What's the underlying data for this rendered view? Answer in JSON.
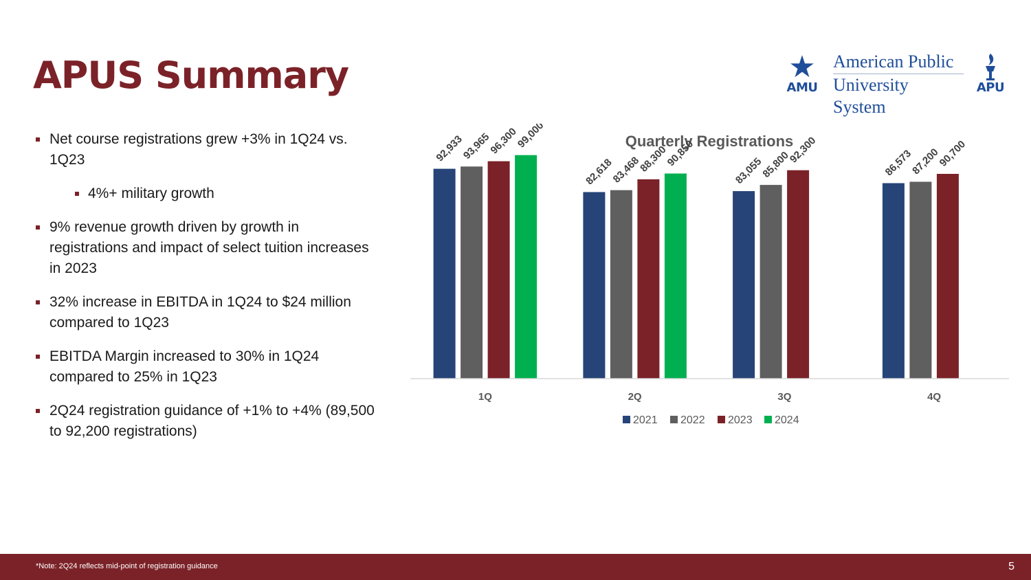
{
  "slide": {
    "title": "APUS Summary",
    "page_number": "5",
    "footnote": "*Note: 2Q24 reflects mid-point of registration guidance"
  },
  "logo": {
    "left_abbr": "AMU",
    "name_line1": "American Public",
    "name_line2": "University System",
    "right_abbr": "APU"
  },
  "bullets": [
    {
      "text": "Net course registrations grew +3% in 1Q24 vs. 1Q23"
    },
    {
      "text": "4%+ military growth",
      "level": 2
    },
    {
      "text": "9% revenue growth driven by growth in registrations and impact of select tuition increases in 2023"
    },
    {
      "text": "32% increase in EBITDA in 1Q24 to $24 million compared to 1Q23"
    },
    {
      "text": "EBITDA Margin increased to 30% in 1Q24 compared to 25% in 1Q23"
    },
    {
      "text": "2Q24 registration guidance of +1% to +4% (89,500 to 92,200 registrations)"
    }
  ],
  "chart_data": {
    "type": "bar",
    "title": "Quarterly Registrations",
    "xlabel": "",
    "ylabel": "",
    "categories": [
      "1Q",
      "2Q",
      "3Q",
      "4Q"
    ],
    "series": [
      {
        "name": "2021",
        "color": "#264478",
        "values": [
          92933,
          82618,
          83055,
          86573
        ],
        "labels": [
          "92,933",
          "82,618",
          "83,055",
          "86,573"
        ]
      },
      {
        "name": "2022",
        "color": "#5f5f5f",
        "values": [
          93965,
          83468,
          85800,
          87200
        ],
        "labels": [
          "93,965",
          "83,468",
          "85,800",
          "87,200"
        ]
      },
      {
        "name": "2023",
        "color": "#7b2228",
        "values": [
          96300,
          88300,
          92300,
          90700
        ],
        "labels": [
          "96,300",
          "88,300",
          "92,300",
          "90,700"
        ]
      },
      {
        "name": "2024",
        "color": "#00b050",
        "values": [
          99000,
          90850,
          null,
          null
        ],
        "labels": [
          "99,000",
          "90,850",
          null,
          null
        ]
      }
    ],
    "ylim": [
      0,
      105000
    ],
    "grid": false,
    "legend_position": "bottom"
  },
  "colors": {
    "accent": "#7b2228",
    "logo_blue": "#1f4e9a"
  }
}
